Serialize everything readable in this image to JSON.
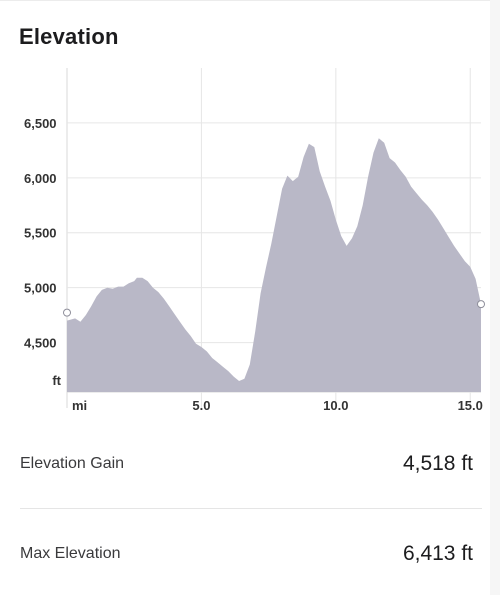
{
  "header": {
    "title": "Elevation"
  },
  "chart_data": {
    "type": "area",
    "title": "Elevation",
    "xlabel": "mi",
    "ylabel": "ft",
    "x_unit_label": "mi",
    "y_unit_label": "ft",
    "xlim": [
      0,
      15.4
    ],
    "ylim": [
      4050,
      7000
    ],
    "x_ticks": [
      5.0,
      10.0,
      15.0
    ],
    "x_tick_labels": [
      "5.0",
      "10.0",
      "15.0"
    ],
    "y_ticks": [
      4500,
      5000,
      5500,
      6000,
      6500
    ],
    "y_tick_labels": [
      "4,500",
      "5,000",
      "5,500",
      "6,000",
      "6,500"
    ],
    "grid": true,
    "fill_color": "#b9b8c7",
    "series": [
      {
        "points": [
          [
            0.0,
            4700
          ],
          [
            0.3,
            4720
          ],
          [
            0.5,
            4690
          ],
          [
            0.7,
            4750
          ],
          [
            0.9,
            4830
          ],
          [
            1.1,
            4920
          ],
          [
            1.3,
            4980
          ],
          [
            1.5,
            5000
          ],
          [
            1.7,
            4990
          ],
          [
            1.9,
            5010
          ],
          [
            2.1,
            5010
          ],
          [
            2.3,
            5040
          ],
          [
            2.5,
            5060
          ],
          [
            2.6,
            5090
          ],
          [
            2.8,
            5090
          ],
          [
            3.0,
            5060
          ],
          [
            3.2,
            5000
          ],
          [
            3.4,
            4960
          ],
          [
            3.6,
            4900
          ],
          [
            3.8,
            4830
          ],
          [
            4.0,
            4760
          ],
          [
            4.2,
            4690
          ],
          [
            4.4,
            4620
          ],
          [
            4.6,
            4560
          ],
          [
            4.8,
            4490
          ],
          [
            5.0,
            4460
          ],
          [
            5.2,
            4420
          ],
          [
            5.4,
            4360
          ],
          [
            5.6,
            4320
          ],
          [
            5.8,
            4280
          ],
          [
            6.0,
            4240
          ],
          [
            6.2,
            4190
          ],
          [
            6.4,
            4150
          ],
          [
            6.6,
            4170
          ],
          [
            6.8,
            4300
          ],
          [
            7.0,
            4600
          ],
          [
            7.2,
            4950
          ],
          [
            7.4,
            5180
          ],
          [
            7.6,
            5400
          ],
          [
            7.8,
            5650
          ],
          [
            8.0,
            5900
          ],
          [
            8.2,
            6020
          ],
          [
            8.4,
            5970
          ],
          [
            8.6,
            6010
          ],
          [
            8.8,
            6190
          ],
          [
            9.0,
            6310
          ],
          [
            9.2,
            6280
          ],
          [
            9.4,
            6060
          ],
          [
            9.6,
            5920
          ],
          [
            9.8,
            5790
          ],
          [
            10.0,
            5620
          ],
          [
            10.2,
            5470
          ],
          [
            10.4,
            5380
          ],
          [
            10.6,
            5450
          ],
          [
            10.8,
            5560
          ],
          [
            11.0,
            5750
          ],
          [
            11.2,
            6010
          ],
          [
            11.4,
            6230
          ],
          [
            11.6,
            6360
          ],
          [
            11.8,
            6320
          ],
          [
            12.0,
            6180
          ],
          [
            12.2,
            6140
          ],
          [
            12.4,
            6070
          ],
          [
            12.6,
            6010
          ],
          [
            12.8,
            5920
          ],
          [
            13.0,
            5860
          ],
          [
            13.2,
            5800
          ],
          [
            13.4,
            5750
          ],
          [
            13.6,
            5690
          ],
          [
            13.8,
            5620
          ],
          [
            14.0,
            5540
          ],
          [
            14.2,
            5460
          ],
          [
            14.4,
            5380
          ],
          [
            14.6,
            5310
          ],
          [
            14.8,
            5240
          ],
          [
            15.0,
            5190
          ],
          [
            15.2,
            5080
          ],
          [
            15.4,
            4850
          ]
        ]
      }
    ]
  },
  "stats": [
    {
      "label": "Elevation Gain",
      "value": "4,518 ft"
    },
    {
      "label": "Max Elevation",
      "value": "6,413 ft"
    }
  ]
}
